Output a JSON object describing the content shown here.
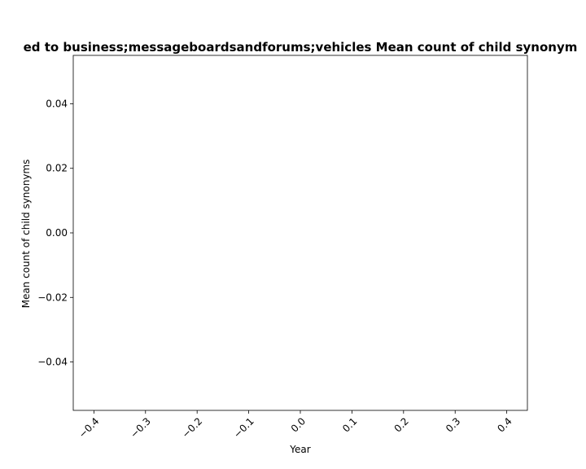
{
  "chart_data": {
    "type": "line",
    "title": "ed to business;messageboardsandforums;vehicles Mean count of child synonym",
    "xlabel": "Year",
    "ylabel": "Mean count of child synonyms",
    "xlim": [
      -0.44,
      0.44
    ],
    "ylim": [
      -0.055,
      0.055
    ],
    "x_ticks": [
      -0.4,
      -0.3,
      -0.2,
      -0.1,
      0.0,
      0.1,
      0.2,
      0.3,
      0.4
    ],
    "x_tick_labels": [
      "−0.4",
      "−0.3",
      "−0.2",
      "−0.1",
      "0.0",
      "0.1",
      "0.2",
      "0.3",
      "0.4"
    ],
    "y_ticks": [
      -0.04,
      -0.02,
      0.0,
      0.02,
      0.04
    ],
    "y_tick_labels": [
      "−0.04",
      "−0.02",
      "0.00",
      "0.02",
      "0.04"
    ],
    "series": [],
    "grid": false,
    "legend": "none"
  }
}
